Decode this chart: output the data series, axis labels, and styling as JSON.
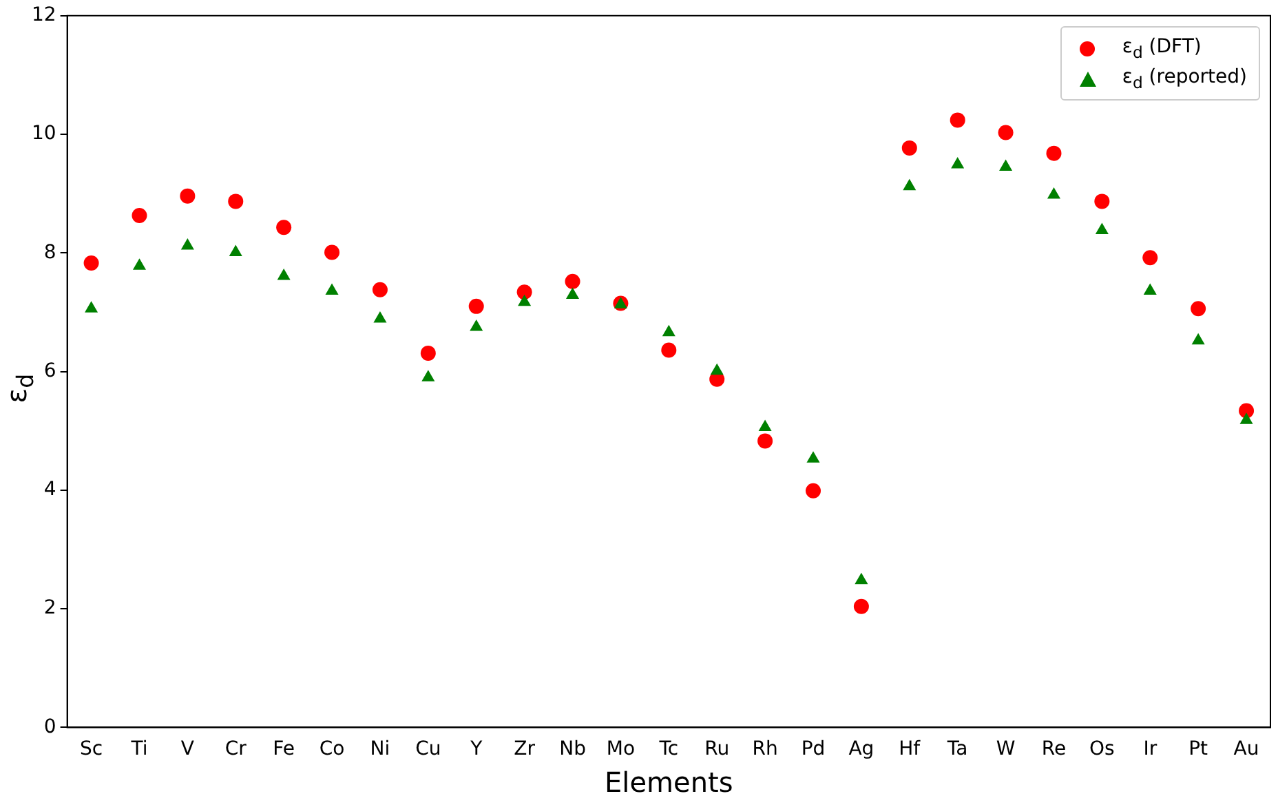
{
  "chart_data": {
    "type": "scatter",
    "xlabel": "Elements",
    "ylabel": "ε$_{d}$",
    "categories": [
      "Sc",
      "Ti",
      "V",
      "Cr",
      "Fe",
      "Co",
      "Ni",
      "Cu",
      "Y",
      "Zr",
      "Nb",
      "Mo",
      "Tc",
      "Ru",
      "Rh",
      "Pd",
      "Ag",
      "Hf",
      "Ta",
      "W",
      "Re",
      "Os",
      "Ir",
      "Pt",
      "Au"
    ],
    "series": [
      {
        "name": "ε$_{d}$ (DFT)",
        "color": "#ff0000",
        "marker": "circle",
        "values": [
          7.83,
          8.63,
          8.96,
          8.87,
          8.43,
          8.01,
          7.38,
          6.31,
          7.1,
          7.34,
          7.52,
          7.15,
          6.36,
          5.87,
          4.83,
          3.99,
          2.04,
          9.77,
          10.24,
          10.03,
          9.68,
          8.87,
          7.92,
          7.06,
          5.34
        ]
      },
      {
        "name": "ε$_{d}$ (reported)",
        "color": "#008000",
        "marker": "triangle",
        "values": [
          7.06,
          7.78,
          8.12,
          8.01,
          7.61,
          7.36,
          6.89,
          5.9,
          6.75,
          7.17,
          7.29,
          7.13,
          6.66,
          6.01,
          5.06,
          4.53,
          2.48,
          9.12,
          9.49,
          9.45,
          8.98,
          8.38,
          7.36,
          6.52,
          5.18
        ]
      }
    ],
    "ylim": [
      0,
      12
    ],
    "yticks": [
      0,
      2,
      4,
      6,
      8,
      10,
      12
    ],
    "grid": false,
    "legend": "top right"
  }
}
